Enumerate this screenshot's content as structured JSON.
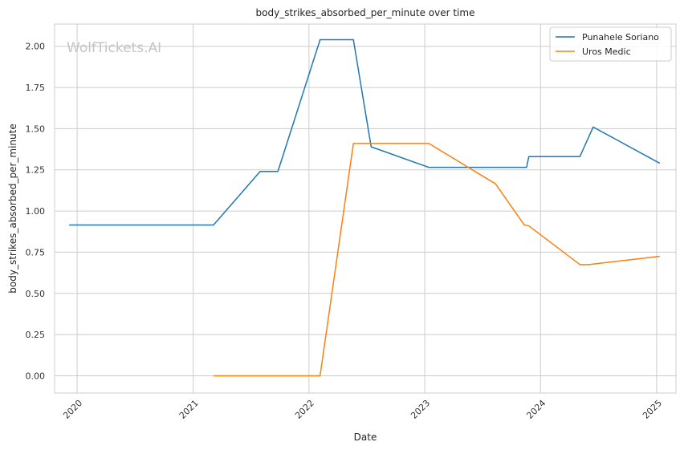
{
  "watermark": "WolfTickets.AI",
  "chart_data": {
    "type": "line",
    "title": "body_strikes_absorbed_per_minute over time",
    "xlabel": "Date",
    "ylabel": "body_strikes_absorbed_per_minute",
    "x_ticks": [
      "2020",
      "2021",
      "2022",
      "2023",
      "2024",
      "2025"
    ],
    "y_ticks": [
      "0.00",
      "0.25",
      "0.50",
      "0.75",
      "1.00",
      "1.25",
      "1.50",
      "1.75",
      "2.00"
    ],
    "xlim": [
      "2019-10-22",
      "2025-03-03"
    ],
    "ylim": [
      -0.105,
      2.135
    ],
    "grid": true,
    "legend_position": "top-right",
    "series": [
      {
        "name": "Punahele Soriano",
        "color": "#1f77b4",
        "points": [
          [
            "2019-12-07",
            0.915
          ],
          [
            "2021-03-06",
            0.915
          ],
          [
            "2021-07-31",
            1.24
          ],
          [
            "2021-09-25",
            1.24
          ],
          [
            "2022-02-05",
            2.04
          ],
          [
            "2022-05-21",
            2.04
          ],
          [
            "2022-07-16",
            1.39
          ],
          [
            "2023-01-14",
            1.265
          ],
          [
            "2023-11-18",
            1.265
          ],
          [
            "2023-11-25",
            1.33
          ],
          [
            "2024-05-04",
            1.33
          ],
          [
            "2024-06-15",
            1.51
          ],
          [
            "2025-01-11",
            1.29
          ]
        ]
      },
      {
        "name": "Uros Medic",
        "color": "#ff7f0e",
        "points": [
          [
            "2021-03-06",
            0.0
          ],
          [
            "2022-02-05",
            0.0
          ],
          [
            "2022-05-21",
            1.41
          ],
          [
            "2023-01-14",
            1.41
          ],
          [
            "2023-08-12",
            1.165
          ],
          [
            "2023-11-11",
            0.915
          ],
          [
            "2023-11-25",
            0.91
          ],
          [
            "2024-05-04",
            0.675
          ],
          [
            "2024-06-01",
            0.675
          ],
          [
            "2025-01-11",
            0.725
          ]
        ]
      }
    ]
  }
}
